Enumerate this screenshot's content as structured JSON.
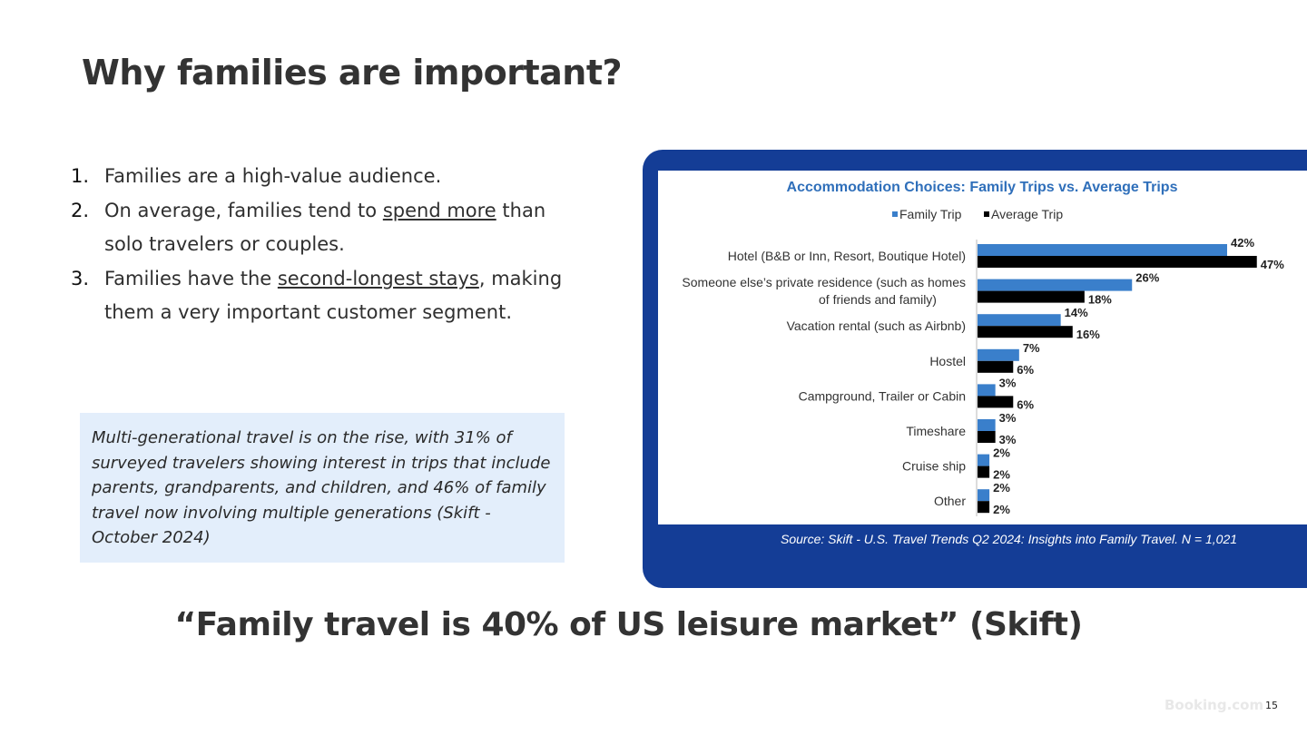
{
  "slide": {
    "title": "Why families are important?",
    "quote": "“Family travel is 40% of US leisure market” (Skift)",
    "logo_text": "Booking.com",
    "page_number": "15"
  },
  "bullets": [
    {
      "num": "1.",
      "parts": [
        {
          "text": "Families are a high-value audience."
        }
      ]
    },
    {
      "num": "2.",
      "parts": [
        {
          "text": "On average, families tend to "
        },
        {
          "text": "spend more",
          "underline": true
        },
        {
          "text": " than solo travelers or couples."
        }
      ]
    },
    {
      "num": "3.",
      "parts": [
        {
          "text": "Families have the "
        },
        {
          "text": "second-longest stays",
          "underline": true
        },
        {
          "text": ", making them a very important customer segment."
        }
      ]
    }
  ],
  "callout": {
    "text": "Multi-generational travel is on the rise, with 31% of surveyed travelers showing interest in trips that include parents, grandparents, and children, and 46% of family travel now involving multiple generations (Skift - October 2024)"
  },
  "chart_source": "Source: Skift - U.S. Travel Trends Q2 2024: Insights into Family Travel. N = 1,021",
  "chart_data": {
    "type": "bar",
    "orientation": "horizontal",
    "title": "Accommodation Choices: Family Trips vs. Average Trips",
    "legend_placement": "top",
    "grid": false,
    "xlim": [
      0,
      50
    ],
    "categories": [
      [
        "Hotel (B&B or Inn, Resort, Boutique Hotel)"
      ],
      [
        "Someone else’s private residence (such as homes",
        "of friends and family)"
      ],
      [
        "Vacation rental (such as Airbnb)"
      ],
      [
        "Hostel"
      ],
      [
        "Campground, Trailer or Cabin"
      ],
      [
        "Timeshare"
      ],
      [
        "Cruise ship"
      ],
      [
        "Other"
      ]
    ],
    "series": [
      {
        "name": "Family Trip",
        "color": "#3a7fcb",
        "values": [
          42,
          26,
          14,
          7,
          3,
          3,
          2,
          2
        ]
      },
      {
        "name": "Average Trip",
        "color": "#000000",
        "values": [
          47,
          18,
          16,
          6,
          6,
          3,
          2,
          2
        ]
      }
    ],
    "value_suffix": "%"
  }
}
